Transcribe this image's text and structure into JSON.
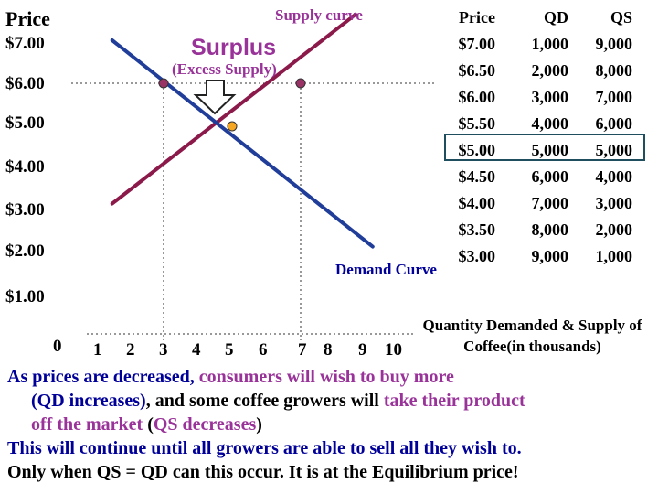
{
  "chart_data": {
    "type": "line",
    "y_axis_title": "Price",
    "y_ticks": [
      "$7.00",
      "$6.00",
      "$5.00",
      "$4.00",
      "$3.00",
      "$2.00",
      "$1.00",
      "0"
    ],
    "x_ticks": [
      "1",
      "2",
      "3",
      "4",
      "5",
      "6",
      "7",
      "8",
      "9",
      "10"
    ],
    "x_axis_title": "Quantity Demanded & Supply of Coffee(in thousands)",
    "series": [
      {
        "name": "Supply curve",
        "color": "#8b1a4a",
        "points": [
          [
            1.5,
            3.2
          ],
          [
            8.6,
            7.6
          ]
        ]
      },
      {
        "name": "Demand Curve",
        "color": "#1f3d99",
        "points": [
          [
            1.5,
            7.0
          ],
          [
            9.1,
            2.2
          ]
        ]
      }
    ],
    "markers": [
      {
        "x": 3.0,
        "y": 6.0,
        "color": "#993366"
      },
      {
        "x": 7.0,
        "y": 6.0,
        "color": "#993366"
      },
      {
        "x": 5.0,
        "y": 5.0,
        "color": "#f5a623"
      }
    ],
    "reference_line": {
      "y": 6.0,
      "style": "dotted"
    },
    "reference_verticals": [
      3.0,
      7.0
    ],
    "annotations": {
      "surplus": "Surplus",
      "excess_supply": "(Excess Supply)"
    },
    "table": {
      "headers": [
        "Price",
        "QD",
        "QS"
      ],
      "rows": [
        [
          "$7.00",
          "1,000",
          "9,000"
        ],
        [
          "$6.50",
          "2,000",
          "8,000"
        ],
        [
          "$6.00",
          "3,000",
          "7,000"
        ],
        [
          "$5.50",
          "4,000",
          "6,000"
        ],
        [
          "$5.00",
          "5,000",
          "5,000"
        ],
        [
          "$4.50",
          "6,000",
          "4,000"
        ],
        [
          "$4.00",
          "7,000",
          "3,000"
        ],
        [
          "$3.50",
          "8,000",
          "2,000"
        ],
        [
          "$3.00",
          "9,000",
          "1,000"
        ]
      ],
      "highlighted_row": 4
    }
  },
  "notes": {
    "line1_a": "As prices are decreased, ",
    "line1_b": "consumers will wish to buy more",
    "line2_a": "(QD increases)",
    "line2_b": ", and some coffee growers will ",
    "line2_c": "take their product",
    "line3_a": "off the market",
    "line3_b": " (",
    "line3_c": "QS decreases",
    "line3_d": ")",
    "line4": "This will continue until all growers are able to sell all they wish to.",
    "line5": "Only when QS = QD can this occur.  It is at the Equilibrium price!"
  },
  "colors": {
    "accent": "#993399",
    "blue_text": "#000099",
    "highlight_box": "#1f4e5f"
  }
}
